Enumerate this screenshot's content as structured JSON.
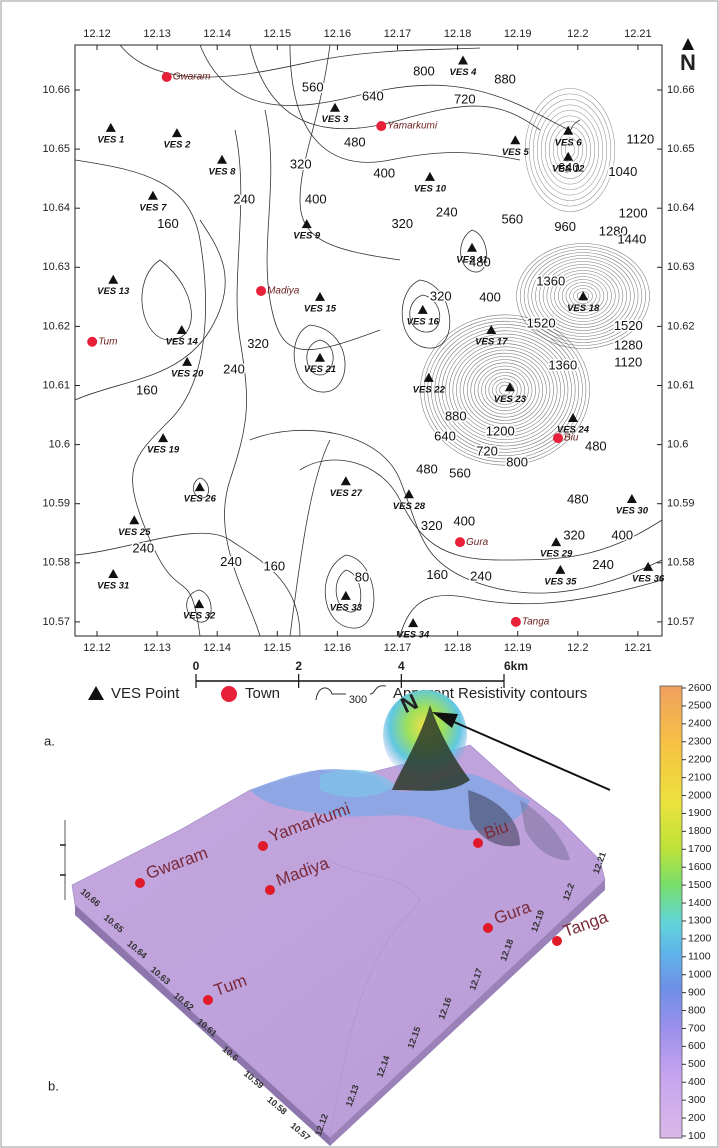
{
  "panel_a": {
    "label": "a.",
    "north": "N",
    "x_ticks": [
      12.12,
      12.13,
      12.14,
      12.15,
      12.16,
      12.17,
      12.18,
      12.19,
      12.2,
      12.21
    ],
    "y_ticks": [
      10.66,
      10.65,
      10.64,
      10.63,
      10.62,
      10.61,
      10.6,
      10.59,
      10.58,
      10.57
    ],
    "ves_points": [
      {
        "label": "VES 1",
        "x": 12.1223,
        "y": 10.6536
      },
      {
        "label": "VES 2",
        "x": 12.1333,
        "y": 10.6527
      },
      {
        "label": "VES 3",
        "x": 12.1596,
        "y": 10.657
      },
      {
        "label": "VES 4",
        "x": 12.1809,
        "y": 10.665
      },
      {
        "label": "VES 5",
        "x": 12.1896,
        "y": 10.6515
      },
      {
        "label": "VES 6",
        "x": 12.1984,
        "y": 10.6531
      },
      {
        "label": "VES 12",
        "x": 12.1984,
        "y": 10.6487
      },
      {
        "label": "VES 7",
        "x": 12.1293,
        "y": 10.6421
      },
      {
        "label": "VES 8",
        "x": 12.1408,
        "y": 10.6482
      },
      {
        "label": "VES 9",
        "x": 12.1549,
        "y": 10.6373
      },
      {
        "label": "VES 10",
        "x": 12.1754,
        "y": 10.6453
      },
      {
        "label": "VES 11",
        "x": 12.1824,
        "y": 10.6333
      },
      {
        "label": "VES 13",
        "x": 12.1227,
        "y": 10.6279
      },
      {
        "label": "VES 14",
        "x": 12.1341,
        "y": 10.6194
      },
      {
        "label": "VES 15",
        "x": 12.1571,
        "y": 10.625
      },
      {
        "label": "VES 16",
        "x": 12.1742,
        "y": 10.6228
      },
      {
        "label": "VES 17",
        "x": 12.1856,
        "y": 10.6194
      },
      {
        "label": "VES 18",
        "x": 12.2009,
        "y": 10.6251
      },
      {
        "label": "VES 20",
        "x": 12.135,
        "y": 10.614
      },
      {
        "label": "VES 21",
        "x": 12.1571,
        "y": 10.6147
      },
      {
        "label": "VES 22",
        "x": 12.1752,
        "y": 10.6113
      },
      {
        "label": "VES 23",
        "x": 12.1887,
        "y": 10.6097
      },
      {
        "label": "VES 24",
        "x": 12.1992,
        "y": 10.6045
      },
      {
        "label": "VES 19",
        "x": 12.131,
        "y": 10.6011
      },
      {
        "label": "VES 26",
        "x": 12.1371,
        "y": 10.5928
      },
      {
        "label": "VES 27",
        "x": 12.1614,
        "y": 10.5938
      },
      {
        "label": "VES 28",
        "x": 12.1719,
        "y": 10.5916
      },
      {
        "label": "VES 25",
        "x": 12.1262,
        "y": 10.5872
      },
      {
        "label": "VES 29",
        "x": 12.1964,
        "y": 10.5835
      },
      {
        "label": "VES 35",
        "x": 12.1971,
        "y": 10.5788
      },
      {
        "label": "VES 30",
        "x": 12.209,
        "y": 10.5908
      },
      {
        "label": "VES 36",
        "x": 12.2117,
        "y": 10.5793
      },
      {
        "label": "VES 31",
        "x": 12.1227,
        "y": 10.5781
      },
      {
        "label": "VES 32",
        "x": 12.137,
        "y": 10.573
      },
      {
        "label": "VES 33",
        "x": 12.1614,
        "y": 10.5744
      },
      {
        "label": "VES 34",
        "x": 12.1726,
        "y": 10.5698
      }
    ],
    "towns": [
      {
        "label": "Gwaram",
        "x": 12.1316,
        "y": 10.6622
      },
      {
        "label": "Yamarkumi",
        "x": 12.1673,
        "y": 10.6539
      },
      {
        "label": "Madiya",
        "x": 12.1473,
        "y": 10.626
      },
      {
        "label": "Tum",
        "x": 12.1192,
        "y": 10.6174
      },
      {
        "label": "Biu",
        "x": 12.1967,
        "y": 10.6011
      },
      {
        "label": "Gura",
        "x": 12.1804,
        "y": 10.5835
      },
      {
        "label": "Tanga",
        "x": 12.1897,
        "y": 10.57
      }
    ],
    "contour_labels": [
      {
        "value": 800,
        "x": 12.1744,
        "y": 10.663
      },
      {
        "value": 880,
        "x": 12.1879,
        "y": 10.6617
      },
      {
        "value": 720,
        "x": 12.1812,
        "y": 10.6583
      },
      {
        "value": 560,
        "x": 12.1559,
        "y": 10.6603
      },
      {
        "value": 640,
        "x": 12.1659,
        "y": 10.6588
      },
      {
        "value": 480,
        "x": 12.1629,
        "y": 10.651
      },
      {
        "value": 400,
        "x": 12.1678,
        "y": 10.6458
      },
      {
        "value": 320,
        "x": 12.1539,
        "y": 10.6473
      },
      {
        "value": 400,
        "x": 12.1564,
        "y": 10.6414
      },
      {
        "value": 240,
        "x": 12.1445,
        "y": 10.6414
      },
      {
        "value": 160,
        "x": 12.1318,
        "y": 10.6372
      },
      {
        "value": 240,
        "x": 12.1782,
        "y": 10.6392
      },
      {
        "value": 320,
        "x": 12.1708,
        "y": 10.6372
      },
      {
        "value": 480,
        "x": 12.1837,
        "y": 10.6307
      },
      {
        "value": 560,
        "x": 12.1891,
        "y": 10.638
      },
      {
        "value": 640,
        "x": 12.1985,
        "y": 10.6467
      },
      {
        "value": 960,
        "x": 12.1979,
        "y": 10.6367
      },
      {
        "value": 1040,
        "x": 12.2075,
        "y": 10.646
      },
      {
        "value": 1120,
        "x": 12.2104,
        "y": 10.6515
      },
      {
        "value": 1200,
        "x": 12.2092,
        "y": 10.639
      },
      {
        "value": 1280,
        "x": 12.2059,
        "y": 10.636
      },
      {
        "value": 1440,
        "x": 12.209,
        "y": 10.6346
      },
      {
        "value": 1360,
        "x": 12.1955,
        "y": 10.6275
      },
      {
        "value": 1520,
        "x": 12.1939,
        "y": 10.6204
      },
      {
        "value": 1520,
        "x": 12.2084,
        "y": 10.62
      },
      {
        "value": 1280,
        "x": 12.2084,
        "y": 10.6167
      },
      {
        "value": 1120,
        "x": 12.2084,
        "y": 10.6138
      },
      {
        "value": 1360,
        "x": 12.1975,
        "y": 10.6133
      },
      {
        "value": 1200,
        "x": 12.1871,
        "y": 10.6021
      },
      {
        "value": 880,
        "x": 12.1797,
        "y": 10.6047
      },
      {
        "value": 640,
        "x": 12.1779,
        "y": 10.6013
      },
      {
        "value": 720,
        "x": 12.1849,
        "y": 10.5987
      },
      {
        "value": 800,
        "x": 12.1899,
        "y": 10.5969
      },
      {
        "value": 480,
        "x": 12.1749,
        "y": 10.5957
      },
      {
        "value": 560,
        "x": 12.1804,
        "y": 10.595
      },
      {
        "value": 400,
        "x": 12.1811,
        "y": 10.5869
      },
      {
        "value": 320,
        "x": 12.1757,
        "y": 10.5861
      },
      {
        "value": 240,
        "x": 12.1839,
        "y": 10.5776
      },
      {
        "value": 160,
        "x": 12.1766,
        "y": 10.5778
      },
      {
        "value": 80,
        "x": 12.1641,
        "y": 10.5774
      },
      {
        "value": 240,
        "x": 12.1423,
        "y": 10.58
      },
      {
        "value": 160,
        "x": 12.1495,
        "y": 10.5793
      },
      {
        "value": 240,
        "x": 12.1277,
        "y": 10.5823
      },
      {
        "value": 160,
        "x": 12.1283,
        "y": 10.6091
      },
      {
        "value": 240,
        "x": 12.1428,
        "y": 10.6126
      },
      {
        "value": 320,
        "x": 12.1468,
        "y": 10.6169
      },
      {
        "value": 320,
        "x": 12.1994,
        "y": 10.5845
      },
      {
        "value": 400,
        "x": 12.2074,
        "y": 10.5845
      },
      {
        "value": 240,
        "x": 12.2042,
        "y": 10.5795
      },
      {
        "value": 480,
        "x": 12.2,
        "y": 10.5906
      },
      {
        "value": 480,
        "x": 12.203,
        "y": 10.5996
      },
      {
        "value": 320,
        "x": 12.1772,
        "y": 10.625
      },
      {
        "value": 400,
        "x": 12.1854,
        "y": 10.6248
      }
    ],
    "scale_bar": {
      "ticks": [
        0,
        2,
        4,
        {
          "value": 6,
          "label": "6km"
        }
      ]
    },
    "legend": {
      "ves": "VES Point",
      "town": "Town",
      "contour_sample": 300,
      "contours": "Apparent Resistivity contours"
    }
  },
  "panel_b": {
    "label": "b.",
    "north": "N",
    "towns": [
      "Gwaram",
      "Yamarkumi",
      "Madiya",
      "Tum",
      "Biu",
      "Gura",
      "Tanga"
    ],
    "y_ticks": [
      10.66,
      10.65,
      10.64,
      10.63,
      10.62,
      10.61,
      10.6,
      10.59,
      10.58,
      10.57
    ],
    "x_ticks": [
      12.12,
      12.13,
      12.14,
      12.15,
      12.16,
      12.17,
      12.18,
      12.19,
      12.2,
      12.21
    ],
    "colorbar_ticks": [
      100,
      200,
      300,
      400,
      500,
      600,
      700,
      800,
      900,
      1000,
      1100,
      1200,
      1300,
      1400,
      1500,
      1600,
      1700,
      1800,
      1900,
      2000,
      2100,
      2200,
      2300,
      2400,
      2500,
      2600
    ]
  }
}
